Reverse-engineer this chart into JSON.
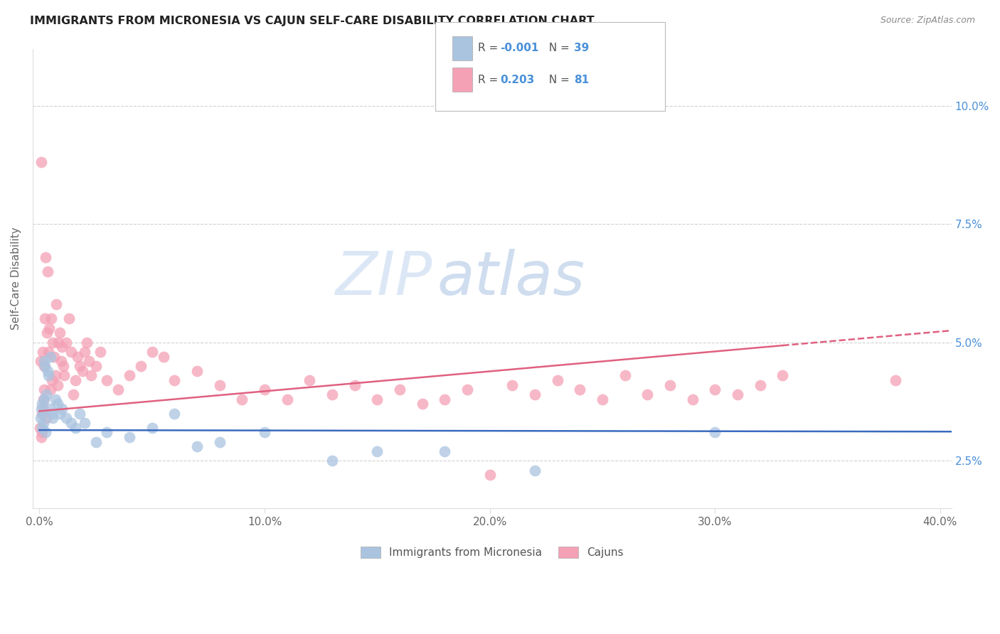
{
  "title": "IMMIGRANTS FROM MICRONESIA VS CAJUN SELF-CARE DISABILITY CORRELATION CHART",
  "source": "Source: ZipAtlas.com",
  "ylabel": "Self-Care Disability",
  "x_tick_labels": [
    "0.0%",
    "10.0%",
    "20.0%",
    "30.0%",
    "40.0%"
  ],
  "x_tick_values": [
    0.0,
    10.0,
    20.0,
    30.0,
    40.0
  ],
  "y_tick_labels_right": [
    "2.5%",
    "5.0%",
    "7.5%",
    "10.0%"
  ],
  "y_tick_values": [
    2.5,
    5.0,
    7.5,
    10.0
  ],
  "xlim": [
    -0.3,
    40.5
  ],
  "ylim": [
    1.5,
    11.2
  ],
  "legend_blue_label": "Immigrants from Micronesia",
  "legend_pink_label": "Cajuns",
  "legend_blue_r": "R = ",
  "legend_blue_r_val": "-0.001",
  "legend_blue_n": "N = ",
  "legend_blue_n_val": "39",
  "legend_pink_r": "R = ",
  "legend_pink_r_val": "0.203",
  "legend_pink_n": "N = ",
  "legend_pink_n_val": "81",
  "blue_color": "#aac4e0",
  "pink_color": "#f4a0b5",
  "blue_line_color": "#3a6abf",
  "pink_line_color": "#e06080",
  "watermark_zip": "ZIP",
  "watermark_atlas": "atlas",
  "background_color": "#ffffff",
  "grid_color": "#cccccc",
  "blue_scatter_x": [
    0.05,
    0.08,
    0.1,
    0.12,
    0.15,
    0.18,
    0.2,
    0.22,
    0.25,
    0.28,
    0.3,
    0.35,
    0.4,
    0.45,
    0.5,
    0.55,
    0.6,
    0.7,
    0.8,
    0.9,
    1.0,
    1.2,
    1.4,
    1.6,
    1.8,
    2.0,
    2.5,
    3.0,
    4.0,
    5.0,
    6.0,
    7.0,
    8.0,
    10.0,
    13.0,
    15.0,
    18.0,
    22.0,
    30.0
  ],
  "blue_scatter_y": [
    3.4,
    3.6,
    3.7,
    3.2,
    3.5,
    3.3,
    4.6,
    3.8,
    4.5,
    3.1,
    3.9,
    4.4,
    4.3,
    3.6,
    4.7,
    3.5,
    3.4,
    3.8,
    3.7,
    3.5,
    3.6,
    3.4,
    3.3,
    3.2,
    3.5,
    3.3,
    2.9,
    3.1,
    3.0,
    3.2,
    3.5,
    2.8,
    2.9,
    3.1,
    2.5,
    2.7,
    2.7,
    2.3,
    3.1
  ],
  "pink_scatter_x": [
    0.03,
    0.05,
    0.07,
    0.09,
    0.1,
    0.12,
    0.14,
    0.16,
    0.18,
    0.2,
    0.22,
    0.25,
    0.28,
    0.3,
    0.33,
    0.36,
    0.4,
    0.44,
    0.48,
    0.52,
    0.56,
    0.6,
    0.65,
    0.7,
    0.75,
    0.8,
    0.85,
    0.9,
    0.95,
    1.0,
    1.05,
    1.1,
    1.2,
    1.3,
    1.4,
    1.5,
    1.6,
    1.7,
    1.8,
    1.9,
    2.0,
    2.1,
    2.2,
    2.3,
    2.5,
    2.7,
    3.0,
    3.5,
    4.0,
    4.5,
    5.0,
    5.5,
    6.0,
    7.0,
    8.0,
    9.0,
    10.0,
    11.0,
    12.0,
    13.0,
    14.0,
    15.0,
    16.0,
    17.0,
    18.0,
    19.0,
    20.0,
    21.0,
    22.0,
    23.0,
    24.0,
    25.0,
    26.0,
    27.0,
    28.0,
    29.0,
    30.0,
    31.0,
    32.0,
    33.0,
    38.0
  ],
  "pink_scatter_y": [
    3.2,
    4.6,
    3.0,
    8.8,
    3.5,
    3.1,
    4.8,
    3.8,
    3.6,
    4.0,
    4.5,
    5.5,
    6.8,
    3.4,
    5.2,
    6.5,
    4.8,
    5.3,
    4.0,
    5.5,
    4.2,
    5.0,
    4.7,
    4.3,
    5.8,
    4.1,
    5.0,
    5.2,
    4.6,
    4.9,
    4.5,
    4.3,
    5.0,
    5.5,
    4.8,
    3.9,
    4.2,
    4.7,
    4.5,
    4.4,
    4.8,
    5.0,
    4.6,
    4.3,
    4.5,
    4.8,
    4.2,
    4.0,
    4.3,
    4.5,
    4.8,
    4.7,
    4.2,
    4.4,
    4.1,
    3.8,
    4.0,
    3.8,
    4.2,
    3.9,
    4.1,
    3.8,
    4.0,
    3.7,
    3.8,
    4.0,
    2.2,
    4.1,
    3.9,
    4.2,
    4.0,
    3.8,
    4.3,
    3.9,
    4.1,
    3.8,
    4.0,
    3.9,
    4.1,
    4.3,
    4.2
  ],
  "blue_intercept": 3.15,
  "blue_slope": -0.0008,
  "pink_intercept": 3.55,
  "pink_slope": 0.042,
  "pink_max_data_x": 33.0
}
